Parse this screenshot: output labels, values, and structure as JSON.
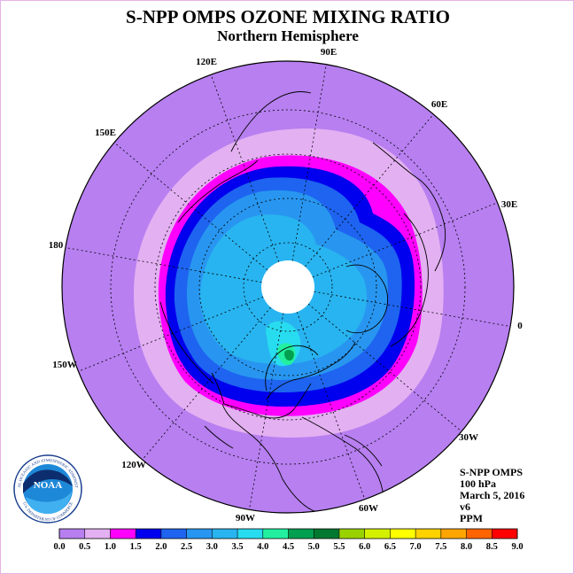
{
  "title": "S-NPP OMPS OZONE MIXING RATIO",
  "subtitle": "Northern Hemisphere",
  "longitude_labels": [
    "90E",
    "60E",
    "30E",
    "0",
    "30W",
    "60W",
    "90W",
    "120W",
    "150W",
    "180",
    "150E",
    "120E"
  ],
  "info": {
    "instrument": "S-NPP OMPS",
    "level": "100 hPa",
    "date": "March 5, 2016",
    "version": "v6",
    "units": "PPM"
  },
  "legend": {
    "ticks": [
      "0.0",
      "0.5",
      "1.0",
      "1.5",
      "2.0",
      "2.5",
      "3.0",
      "3.5",
      "4.0",
      "4.5",
      "5.0",
      "5.5",
      "6.0",
      "6.5",
      "7.0",
      "7.5",
      "8.0",
      "8.5",
      "9.0"
    ],
    "colors": [
      "#b77ff0",
      "#e3b0f2",
      "#ff00ff",
      "#0000ee",
      "#1e64f0",
      "#2896f0",
      "#28b4f0",
      "#28dcf0",
      "#22f0a0",
      "#00a050",
      "#007830",
      "#9ad200",
      "#d2f000",
      "#ffff00",
      "#ffd200",
      "#ffa500",
      "#ff6400",
      "#ff0000",
      "#aa6040"
    ]
  },
  "logo": {
    "text": "NOAA",
    "ring_text": "NATIONAL OCEANIC AND ATMOSPHERIC ADMINISTRATION",
    "ring_text_bottom": "U.S. DEPARTMENT OF COMMERCE"
  },
  "colors": {
    "background": "#b77ff0",
    "accent_magenta": "#ff00ff"
  }
}
